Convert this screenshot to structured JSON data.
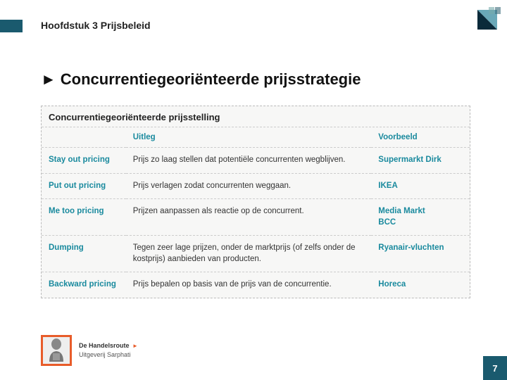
{
  "colors": {
    "brand_teal": "#1a5a6e",
    "accent_teal": "#1a8a9e",
    "orange": "#e85c2a",
    "table_bg": "#f7f7f6",
    "border_dash": "#cccccc",
    "text": "#333333"
  },
  "chapter_title": "Hoofdstuk 3 Prijsbeleid",
  "heading": "Concurrentiegeoriënteerde prijsstrategie",
  "table": {
    "title": "Concurrentiegeoriënteerde prijsstelling",
    "columns": {
      "strategy": "",
      "explain": "Uitleg",
      "example": "Voorbeeld"
    },
    "rows": [
      {
        "strategy": "Stay out pricing",
        "explain": "Prijs zo laag stellen dat potentiële concurrenten wegblijven.",
        "example": "Supermarkt Dirk"
      },
      {
        "strategy": "Put out pricing",
        "explain": "Prijs verlagen zodat concurrenten weggaan.",
        "example": "IKEA"
      },
      {
        "strategy": "Me too pricing",
        "explain": "Prijzen aanpassen als reactie op de concurrent.",
        "example": "Media Markt\nBCC"
      },
      {
        "strategy": "Dumping",
        "explain": "Tegen zeer lage prijzen, onder de marktprijs (of zelfs onder de kostprijs) aanbieden van producten.",
        "example": "Ryanair-vluchten"
      },
      {
        "strategy": "Backward pricing",
        "explain": "Prijs bepalen op basis van de prijs van de concurrentie.",
        "example": "Horeca"
      }
    ]
  },
  "footer": {
    "line1": "De Handelsroute",
    "line2": "Uitgeverij Sarphati"
  },
  "page_number": "7"
}
